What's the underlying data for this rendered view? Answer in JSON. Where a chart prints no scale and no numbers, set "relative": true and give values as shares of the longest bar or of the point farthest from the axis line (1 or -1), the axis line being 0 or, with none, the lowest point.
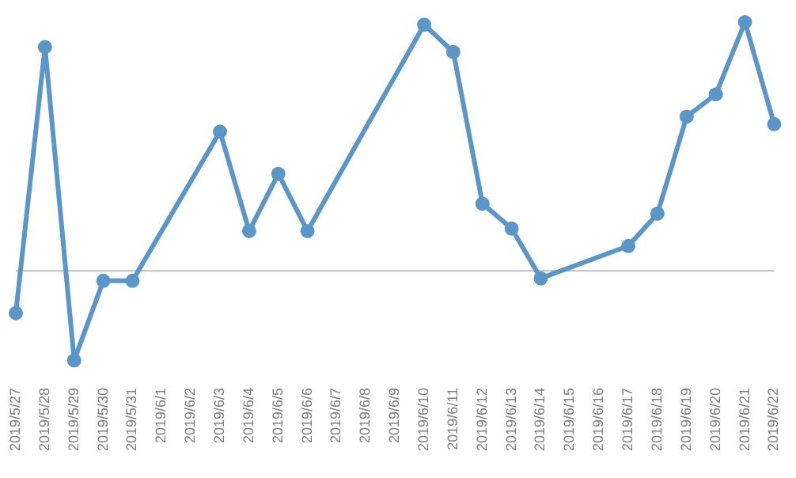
{
  "chart_data": {
    "type": "line",
    "relative": true,
    "marker": "circle",
    "line_style": "solid",
    "categories": [
      "2019/5/27",
      "2019/5/28",
      "2019/5/29",
      "2019/5/30",
      "2019/5/31",
      "2019/6/1",
      "2019/6/2",
      "2019/6/3",
      "2019/6/4",
      "2019/6/5",
      "2019/6/6",
      "2019/6/7",
      "2019/6/8",
      "2019/6/9",
      "2019/6/10",
      "2019/6/11",
      "2019/6/12",
      "2019/6/13",
      "2019/6/14",
      "2019/6/15",
      "2019/6/16",
      "2019/6/17",
      "2019/6/18",
      "2019/6/19",
      "2019/6/20",
      "2019/6/21",
      "2019/6/22"
    ],
    "series": [
      {
        "color": "#5b96c8",
        "values": [
          -0.17,
          0.9,
          -0.36,
          -0.04,
          -0.04,
          null,
          null,
          0.56,
          0.16,
          0.39,
          0.16,
          null,
          null,
          null,
          0.99,
          0.88,
          0.27,
          0.17,
          -0.03,
          null,
          null,
          0.1,
          0.23,
          0.62,
          0.71,
          1,
          0.59
        ]
      }
    ]
  }
}
